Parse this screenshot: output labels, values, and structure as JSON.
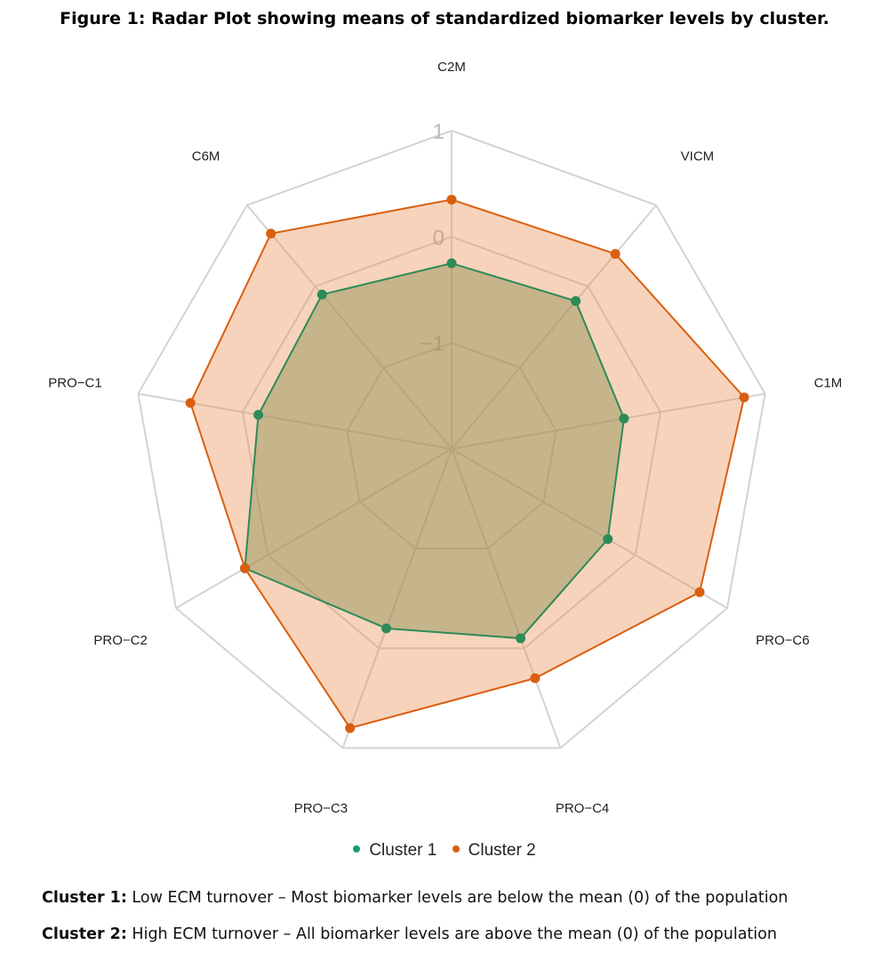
{
  "figure_title": "Figure 1: Radar Plot showing means of standardized biomarker levels by cluster.",
  "chart_data": {
    "type": "radar",
    "axes": [
      "C2M",
      "VICM",
      "C1M",
      "PRO−C6",
      "PRO−C4",
      "PRO−C3",
      "PRO−C2",
      "PRO−C1",
      "C6M"
    ],
    "range": [
      -2,
      1
    ],
    "ticks": [
      {
        "value": 1,
        "label": "1"
      },
      {
        "value": 0,
        "label": "0"
      },
      {
        "value": -1,
        "label": "−1"
      }
    ],
    "grid_levels": [
      -1,
      0,
      1
    ],
    "series": [
      {
        "name": "Cluster 1",
        "color": "#2e8b57",
        "fill": "rgba(138,143,80,0.45)",
        "values": [
          -0.25,
          -0.18,
          -0.35,
          -0.3,
          -0.1,
          -0.2,
          0.25,
          -0.15,
          -0.1
        ]
      },
      {
        "name": "Cluster 2",
        "color": "#d95f0e",
        "fill": "rgba(235,140,80,0.38)",
        "values": [
          0.35,
          0.4,
          0.8,
          0.7,
          0.3,
          0.8,
          0.25,
          0.5,
          0.65
        ]
      }
    ],
    "legend_position": "bottom",
    "grid": true
  },
  "legend": [
    {
      "label": "Cluster 1",
      "color": "#1a9e6e"
    },
    {
      "label": "Cluster 2",
      "color": "#d95f0e"
    }
  ],
  "captions": [
    {
      "bold": "Cluster 1:",
      "text": " Low ECM turnover – Most biomarker levels are below the mean (0) of the population"
    },
    {
      "bold": "Cluster 2:",
      "text": " High ECM turnover – All biomarker levels are above the mean (0) of the population"
    }
  ]
}
